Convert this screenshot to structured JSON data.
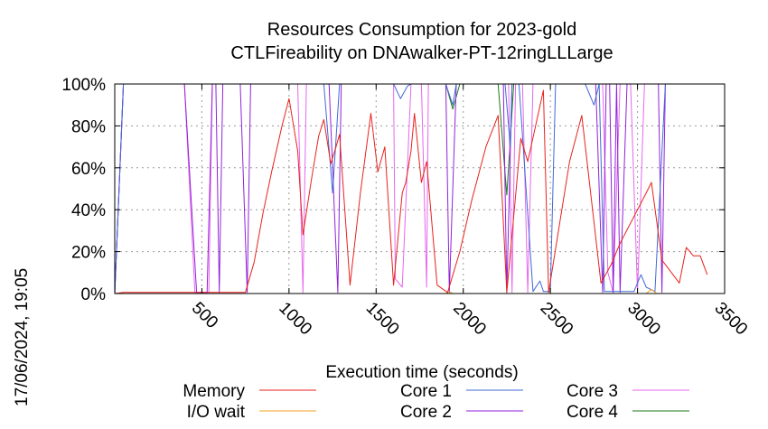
{
  "chart_data": {
    "type": "line",
    "title": "Resources Consumption for 2023-gold",
    "subtitle": "CTLFireability on DNAwalker-PT-12ringLLLarge",
    "xlabel": "Execution time (seconds)",
    "ylabel": "",
    "timestamp": "17/06/2024, 19:05",
    "xlim": [
      0,
      3500
    ],
    "ylim": [
      0,
      100
    ],
    "x_ticks": [
      500,
      1000,
      1500,
      2000,
      2500,
      3000,
      3500
    ],
    "x_tick_labels": [
      "500",
      "1000",
      "1500",
      "2000",
      "2500",
      "3000",
      "3500"
    ],
    "y_ticks": [
      0,
      20,
      40,
      60,
      80,
      100
    ],
    "y_tick_labels": [
      "0%",
      "20%",
      "40%",
      "60%",
      "80%",
      "100%"
    ],
    "grid": true,
    "legend_position": "bottom",
    "series": [
      {
        "name": "Memory",
        "color": "#e8221d",
        "points": [
          [
            0,
            0
          ],
          [
            50,
            0.5
          ],
          [
            200,
            0.5
          ],
          [
            400,
            0.5
          ],
          [
            600,
            0.5
          ],
          [
            750,
            0.5
          ],
          [
            800,
            15
          ],
          [
            850,
            38
          ],
          [
            900,
            58
          ],
          [
            960,
            80
          ],
          [
            1000,
            93
          ],
          [
            1050,
            68
          ],
          [
            1080,
            28
          ],
          [
            1130,
            55
          ],
          [
            1170,
            75
          ],
          [
            1200,
            83
          ],
          [
            1240,
            62
          ],
          [
            1270,
            70
          ],
          [
            1290,
            76
          ],
          [
            1350,
            4
          ],
          [
            1410,
            48
          ],
          [
            1470,
            86
          ],
          [
            1510,
            58
          ],
          [
            1550,
            70
          ],
          [
            1600,
            4
          ],
          [
            1650,
            48
          ],
          [
            1670,
            53
          ],
          [
            1700,
            68
          ],
          [
            1720,
            86
          ],
          [
            1760,
            53
          ],
          [
            1790,
            63
          ],
          [
            1850,
            4
          ],
          [
            1910,
            0.5
          ],
          [
            1980,
            20
          ],
          [
            2050,
            45
          ],
          [
            2130,
            70
          ],
          [
            2200,
            85
          ],
          [
            2250,
            0.5
          ],
          [
            2330,
            74
          ],
          [
            2370,
            63
          ],
          [
            2460,
            97
          ],
          [
            2490,
            0.5
          ],
          [
            2560,
            37
          ],
          [
            2610,
            63
          ],
          [
            2680,
            85
          ],
          [
            2790,
            5
          ],
          [
            2850,
            14
          ],
          [
            2900,
            24
          ],
          [
            3000,
            40
          ],
          [
            3050,
            48
          ],
          [
            3080,
            53
          ],
          [
            3140,
            16
          ],
          [
            3240,
            5
          ],
          [
            3280,
            22
          ],
          [
            3320,
            18
          ],
          [
            3360,
            18
          ],
          [
            3400,
            9
          ]
        ]
      },
      {
        "name": "I/O wait",
        "color": "#f0a020",
        "points": [
          [
            0,
            0
          ],
          [
            1900,
            0
          ],
          [
            1920,
            0.8
          ],
          [
            1940,
            0
          ],
          [
            3050,
            0
          ],
          [
            3080,
            2
          ],
          [
            3110,
            0
          ],
          [
            3500,
            0
          ]
        ]
      },
      {
        "name": "Core 1",
        "color": "#4169d8",
        "points": [
          [
            0,
            0
          ],
          [
            50,
            100
          ],
          [
            1200,
            100
          ],
          [
            1250,
            48
          ],
          [
            1290,
            100
          ],
          [
            1600,
            100
          ],
          [
            1640,
            93
          ],
          [
            1680,
            99
          ],
          [
            1700,
            100
          ],
          [
            1900,
            100
          ],
          [
            1940,
            90
          ],
          [
            1960,
            100
          ],
          [
            2240,
            100
          ],
          [
            2270,
            70
          ],
          [
            2280,
            100
          ],
          [
            2320,
            100
          ],
          [
            2400,
            1
          ],
          [
            2440,
            6
          ],
          [
            2460,
            1
          ],
          [
            2480,
            1
          ],
          [
            2500,
            1
          ],
          [
            2530,
            100
          ],
          [
            2700,
            100
          ],
          [
            2750,
            90
          ],
          [
            2780,
            100
          ],
          [
            2810,
            1
          ],
          [
            2830,
            1
          ],
          [
            2880,
            1
          ],
          [
            2920,
            1
          ],
          [
            2980,
            1
          ],
          [
            3020,
            9
          ],
          [
            3050,
            3
          ],
          [
            3100,
            1
          ],
          [
            3160,
            100
          ],
          [
            3500,
            100
          ]
        ]
      },
      {
        "name": "Core 2",
        "color": "#9122d8",
        "points": [
          [
            0,
            0
          ],
          [
            50,
            100
          ],
          [
            400,
            100
          ],
          [
            470,
            0.5
          ],
          [
            500,
            0.5
          ],
          [
            530,
            0.5
          ],
          [
            560,
            100
          ],
          [
            580,
            100
          ],
          [
            600,
            0.5
          ],
          [
            620,
            100
          ],
          [
            720,
            100
          ],
          [
            760,
            0.5
          ],
          [
            780,
            100
          ],
          [
            1000,
            100
          ],
          [
            1050,
            100
          ],
          [
            1080,
            100
          ],
          [
            1100,
            100
          ],
          [
            1230,
            100
          ],
          [
            1280,
            0.5
          ],
          [
            1300,
            100
          ],
          [
            1350,
            100
          ],
          [
            1400,
            100
          ],
          [
            1550,
            100
          ],
          [
            1600,
            100
          ],
          [
            1650,
            100
          ],
          [
            1800,
            100
          ],
          [
            1850,
            100
          ],
          [
            1880,
            100
          ],
          [
            1900,
            100
          ],
          [
            1920,
            0.5
          ],
          [
            1960,
            100
          ],
          [
            2200,
            100
          ],
          [
            2230,
            100
          ],
          [
            2250,
            0.5
          ],
          [
            2280,
            100
          ],
          [
            2300,
            100
          ],
          [
            2760,
            100
          ],
          [
            2800,
            0.5
          ],
          [
            2820,
            100
          ],
          [
            2840,
            100
          ],
          [
            2860,
            0.5
          ],
          [
            2880,
            100
          ],
          [
            2900,
            0.5
          ],
          [
            2940,
            100
          ],
          [
            3000,
            100
          ],
          [
            3120,
            100
          ],
          [
            3140,
            0.5
          ],
          [
            3160,
            100
          ],
          [
            3500,
            100
          ]
        ]
      },
      {
        "name": "Core 3",
        "color": "#e667ee",
        "points": [
          [
            0,
            0
          ],
          [
            50,
            100
          ],
          [
            400,
            100
          ],
          [
            460,
            0.5
          ],
          [
            500,
            0.5
          ],
          [
            540,
            0.5
          ],
          [
            560,
            100
          ],
          [
            1050,
            100
          ],
          [
            1080,
            0.5
          ],
          [
            1100,
            100
          ],
          [
            1600,
            100
          ],
          [
            1610,
            7
          ],
          [
            1650,
            3
          ],
          [
            1700,
            100
          ],
          [
            1760,
            100
          ],
          [
            1790,
            3
          ],
          [
            1800,
            100
          ],
          [
            1850,
            100
          ],
          [
            2260,
            100
          ],
          [
            2280,
            0.5
          ],
          [
            2300,
            100
          ],
          [
            2340,
            100
          ],
          [
            2370,
            0.5
          ],
          [
            2400,
            100
          ],
          [
            2800,
            100
          ],
          [
            2830,
            10
          ],
          [
            2860,
            0.5
          ],
          [
            2900,
            100
          ],
          [
            2960,
            100
          ],
          [
            3000,
            0.5
          ],
          [
            3040,
            100
          ],
          [
            3100,
            100
          ],
          [
            3500,
            100
          ]
        ]
      },
      {
        "name": "Core 4",
        "color": "#1c7a1c",
        "points": [
          [
            0,
            0
          ],
          [
            50,
            100
          ],
          [
            1900,
            100
          ],
          [
            1940,
            88
          ],
          [
            1980,
            100
          ],
          [
            2200,
            100
          ],
          [
            2250,
            47
          ],
          [
            2290,
            100
          ],
          [
            3500,
            100
          ]
        ]
      }
    ]
  }
}
